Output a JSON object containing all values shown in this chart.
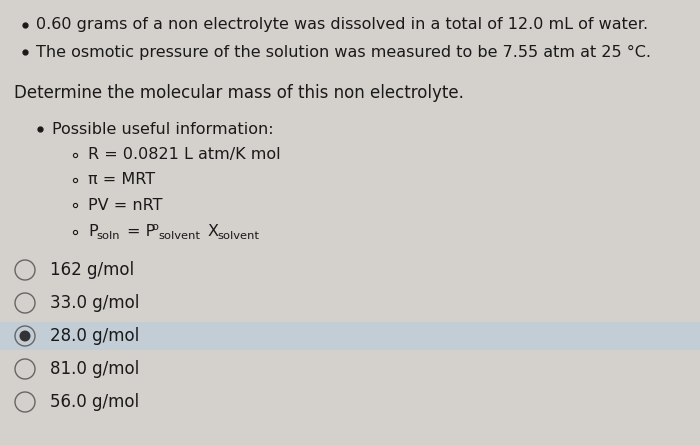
{
  "bg_color": "#d4d0cc",
  "highlight_color": "#c2cdd6",
  "text_color": "#1a1a1a",
  "bullet1": "0.60 grams of a non electrolyte was dissolved in a total of 12.0 mL of water.",
  "bullet2": "The osmotic pressure of the solution was measured to be 7.55 atm at 25 °C.",
  "question": "Determine the molecular mass of this non electrolyte.",
  "sub_header": "Possible useful information:",
  "info1": "R = 0.0821 L atm/K mol",
  "info2": "π = MRT",
  "info3": "PV = nRT",
  "choices": [
    "162 g/mol",
    "33.0 g/mol",
    "28.0 g/mol",
    "81.0 g/mol",
    "56.0 g/mol"
  ],
  "selected": 2,
  "font_size": 11.5
}
